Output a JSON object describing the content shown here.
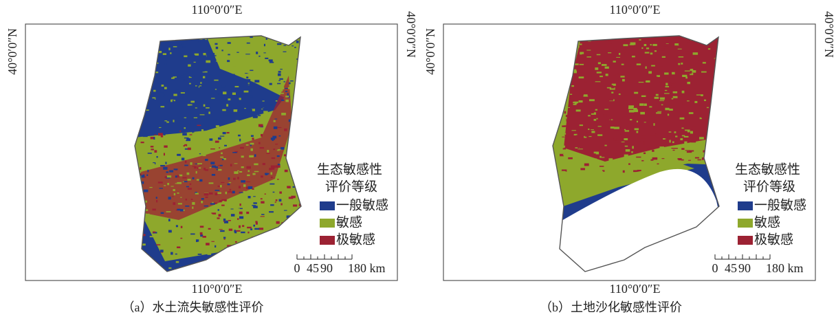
{
  "panels": [
    {
      "top_label": "110°0′0″E",
      "bottom_label": "110°0′0″E",
      "left_label": "40°0′0″N",
      "right_label": "40°0′0″N",
      "legend": {
        "title": [
          "生态敏感性",
          "评价等级"
        ],
        "items": [
          {
            "label": "一般敏感",
            "color": "#1f3c8c"
          },
          {
            "label": "敏感",
            "color": "#8ea82c"
          },
          {
            "label": "极敏感",
            "color": "#9c2233"
          }
        ]
      },
      "scale_bar": {
        "labels": [
          "0",
          "45",
          "90",
          "180 km"
        ]
      },
      "caption": "（a）水土流失敏感性评价"
    },
    {
      "top_label": "110°0′0″E",
      "bottom_label": "110°0′0″E",
      "left_label": "40°0′0″N",
      "right_label": "40°0′0″N",
      "legend": {
        "title": [
          "生态敏感性",
          "评价等级"
        ],
        "items": [
          {
            "label": "一般敏感",
            "color": "#1f3c8c"
          },
          {
            "label": "敏感",
            "color": "#8ea82c"
          },
          {
            "label": "极敏感",
            "color": "#9c2233"
          }
        ]
      },
      "scale_bar": {
        "labels": [
          "0",
          "45",
          "90",
          "180 km"
        ]
      },
      "caption": "（b）土地沙化敏感性评价"
    }
  ]
}
